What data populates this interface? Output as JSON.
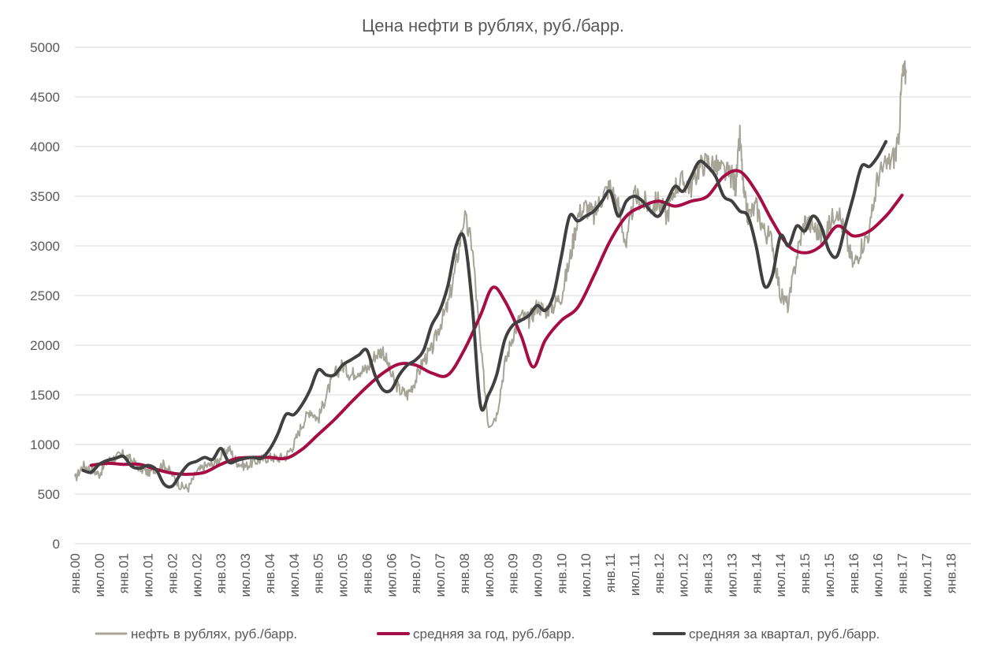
{
  "chart_data": {
    "type": "line",
    "title": "Цена нефти в рублях, руб./барр.",
    "xlabel": "",
    "ylabel": "",
    "ylim": [
      0,
      5000
    ],
    "yticks": [
      "0",
      "500",
      "1000",
      "1500",
      "2000",
      "2500",
      "3000",
      "3500",
      "4000",
      "4500",
      "5000"
    ],
    "x_tick_labels": [
      "янв.00",
      "июл.00",
      "янв.01",
      "июл.01",
      "янв.02",
      "июл.02",
      "янв.03",
      "июл.03",
      "янв.04",
      "июл.04",
      "янв.05",
      "июл.05",
      "янв.06",
      "июл.06",
      "янв.07",
      "июл.07",
      "янв.08",
      "июл.08",
      "янв.09",
      "июл.09",
      "янв.10",
      "июл.10",
      "янв.11",
      "июл.11",
      "янв.12",
      "июл.12",
      "янв.13",
      "июл.13",
      "янв.14",
      "июл.14",
      "янв.15",
      "июл.15",
      "янв.16",
      "июл.16",
      "янв.17",
      "июл.17",
      "янв.18"
    ],
    "x_unit": "months since янв.00 (0 = янв.00)",
    "x_range": [
      0,
      221
    ],
    "grid": true,
    "legend_position": "bottom",
    "series": [
      {
        "name": "нефть в рублях, руб./барр.",
        "color": "#a5a497",
        "width": 2,
        "noisy": true,
        "points": [
          [
            0,
            650
          ],
          [
            2,
            790
          ],
          [
            4,
            750
          ],
          [
            6,
            700
          ],
          [
            8,
            830
          ],
          [
            10,
            870
          ],
          [
            12,
            900
          ],
          [
            14,
            840
          ],
          [
            16,
            760
          ],
          [
            18,
            720
          ],
          [
            20,
            760
          ],
          [
            22,
            800
          ],
          [
            24,
            700
          ],
          [
            26,
            580
          ],
          [
            28,
            560
          ],
          [
            30,
            720
          ],
          [
            32,
            780
          ],
          [
            34,
            800
          ],
          [
            36,
            870
          ],
          [
            38,
            960
          ],
          [
            40,
            820
          ],
          [
            42,
            780
          ],
          [
            44,
            820
          ],
          [
            46,
            850
          ],
          [
            48,
            870
          ],
          [
            50,
            860
          ],
          [
            52,
            880
          ],
          [
            54,
            1000
          ],
          [
            56,
            1200
          ],
          [
            58,
            1350
          ],
          [
            60,
            1250
          ],
          [
            62,
            1500
          ],
          [
            64,
            1700
          ],
          [
            66,
            1800
          ],
          [
            68,
            1700
          ],
          [
            70,
            1750
          ],
          [
            72,
            1750
          ],
          [
            74,
            1900
          ],
          [
            76,
            1950
          ],
          [
            78,
            1700
          ],
          [
            80,
            1550
          ],
          [
            82,
            1500
          ],
          [
            84,
            1650
          ],
          [
            86,
            1850
          ],
          [
            88,
            1950
          ],
          [
            90,
            2200
          ],
          [
            92,
            2400
          ],
          [
            94,
            2800
          ],
          [
            96,
            3300
          ],
          [
            98,
            3000
          ],
          [
            100,
            2000
          ],
          [
            102,
            1200
          ],
          [
            104,
            1300
          ],
          [
            106,
            1800
          ],
          [
            108,
            2100
          ],
          [
            110,
            2300
          ],
          [
            112,
            2250
          ],
          [
            114,
            2400
          ],
          [
            116,
            2350
          ],
          [
            118,
            2400
          ],
          [
            120,
            2500
          ],
          [
            122,
            2850
          ],
          [
            124,
            3300
          ],
          [
            126,
            3400
          ],
          [
            128,
            3300
          ],
          [
            130,
            3500
          ],
          [
            132,
            3600
          ],
          [
            134,
            3400
          ],
          [
            136,
            3000
          ],
          [
            138,
            3500
          ],
          [
            140,
            3450
          ],
          [
            142,
            3400
          ],
          [
            144,
            3450
          ],
          [
            146,
            3300
          ],
          [
            148,
            3600
          ],
          [
            150,
            3650
          ],
          [
            152,
            3600
          ],
          [
            154,
            3800
          ],
          [
            156,
            3850
          ],
          [
            158,
            3800
          ],
          [
            160,
            3750
          ],
          [
            162,
            3700
          ],
          [
            163,
            3600
          ],
          [
            164,
            4100
          ],
          [
            165,
            3500
          ],
          [
            166,
            3300
          ],
          [
            168,
            3400
          ],
          [
            170,
            3150
          ],
          [
            172,
            3050
          ],
          [
            174,
            2500
          ],
          [
            176,
            2400
          ],
          [
            178,
            2900
          ],
          [
            180,
            3250
          ],
          [
            182,
            3200
          ],
          [
            184,
            3100
          ],
          [
            186,
            3200
          ],
          [
            188,
            3400
          ],
          [
            190,
            3100
          ],
          [
            192,
            2800
          ],
          [
            194,
            3000
          ],
          [
            196,
            3150
          ],
          [
            198,
            3700
          ],
          [
            200,
            3800
          ],
          [
            202,
            3900
          ],
          [
            203,
            4000
          ],
          [
            204,
            4700
          ],
          [
            205,
            4750
          ]
        ]
      },
      {
        "name": "средняя за год, руб./барр.",
        "color": "#a50d44",
        "width": 4,
        "noisy": false,
        "points": [
          [
            4,
            790
          ],
          [
            8,
            810
          ],
          [
            12,
            800
          ],
          [
            16,
            800
          ],
          [
            20,
            750
          ],
          [
            24,
            710
          ],
          [
            28,
            700
          ],
          [
            32,
            720
          ],
          [
            36,
            800
          ],
          [
            40,
            860
          ],
          [
            44,
            870
          ],
          [
            48,
            870
          ],
          [
            52,
            860
          ],
          [
            56,
            950
          ],
          [
            60,
            1100
          ],
          [
            64,
            1250
          ],
          [
            68,
            1420
          ],
          [
            72,
            1580
          ],
          [
            76,
            1720
          ],
          [
            80,
            1810
          ],
          [
            84,
            1800
          ],
          [
            88,
            1720
          ],
          [
            92,
            1700
          ],
          [
            96,
            1950
          ],
          [
            100,
            2300
          ],
          [
            103,
            2580
          ],
          [
            106,
            2450
          ],
          [
            110,
            2100
          ],
          [
            113,
            1780
          ],
          [
            116,
            2050
          ],
          [
            120,
            2250
          ],
          [
            124,
            2380
          ],
          [
            128,
            2700
          ],
          [
            132,
            3050
          ],
          [
            136,
            3300
          ],
          [
            140,
            3400
          ],
          [
            144,
            3450
          ],
          [
            148,
            3400
          ],
          [
            152,
            3450
          ],
          [
            156,
            3500
          ],
          [
            160,
            3700
          ],
          [
            164,
            3750
          ],
          [
            168,
            3550
          ],
          [
            172,
            3250
          ],
          [
            176,
            3000
          ],
          [
            180,
            2930
          ],
          [
            184,
            3000
          ],
          [
            188,
            3200
          ],
          [
            192,
            3100
          ],
          [
            196,
            3150
          ],
          [
            200,
            3300
          ],
          [
            202,
            3400
          ],
          [
            204,
            3510
          ]
        ]
      },
      {
        "name": "средняя за квартал, руб./барр.",
        "color": "#404040",
        "width": 4,
        "noisy": false,
        "points": [
          [
            2,
            740
          ],
          [
            4,
            720
          ],
          [
            6,
            800
          ],
          [
            8,
            840
          ],
          [
            10,
            860
          ],
          [
            12,
            880
          ],
          [
            14,
            780
          ],
          [
            16,
            760
          ],
          [
            18,
            790
          ],
          [
            20,
            750
          ],
          [
            22,
            600
          ],
          [
            24,
            580
          ],
          [
            26,
            700
          ],
          [
            28,
            800
          ],
          [
            30,
            830
          ],
          [
            32,
            870
          ],
          [
            34,
            850
          ],
          [
            36,
            960
          ],
          [
            38,
            820
          ],
          [
            40,
            840
          ],
          [
            42,
            860
          ],
          [
            44,
            870
          ],
          [
            46,
            860
          ],
          [
            48,
            950
          ],
          [
            50,
            1100
          ],
          [
            52,
            1300
          ],
          [
            54,
            1300
          ],
          [
            56,
            1400
          ],
          [
            58,
            1550
          ],
          [
            60,
            1750
          ],
          [
            62,
            1700
          ],
          [
            64,
            1700
          ],
          [
            66,
            1800
          ],
          [
            68,
            1850
          ],
          [
            70,
            1900
          ],
          [
            72,
            1950
          ],
          [
            74,
            1700
          ],
          [
            76,
            1550
          ],
          [
            78,
            1550
          ],
          [
            80,
            1700
          ],
          [
            82,
            1800
          ],
          [
            84,
            1850
          ],
          [
            86,
            1950
          ],
          [
            88,
            2200
          ],
          [
            90,
            2350
          ],
          [
            92,
            2600
          ],
          [
            94,
            3000
          ],
          [
            96,
            3080
          ],
          [
            98,
            2400
          ],
          [
            100,
            1400
          ],
          [
            102,
            1500
          ],
          [
            104,
            1700
          ],
          [
            106,
            2050
          ],
          [
            108,
            2200
          ],
          [
            110,
            2250
          ],
          [
            112,
            2300
          ],
          [
            114,
            2400
          ],
          [
            116,
            2350
          ],
          [
            118,
            2500
          ],
          [
            120,
            2900
          ],
          [
            122,
            3300
          ],
          [
            124,
            3250
          ],
          [
            126,
            3300
          ],
          [
            128,
            3350
          ],
          [
            130,
            3450
          ],
          [
            132,
            3550
          ],
          [
            134,
            3300
          ],
          [
            136,
            3450
          ],
          [
            138,
            3500
          ],
          [
            140,
            3450
          ],
          [
            142,
            3350
          ],
          [
            144,
            3300
          ],
          [
            146,
            3450
          ],
          [
            148,
            3600
          ],
          [
            150,
            3550
          ],
          [
            152,
            3700
          ],
          [
            154,
            3850
          ],
          [
            156,
            3800
          ],
          [
            158,
            3700
          ],
          [
            160,
            3500
          ],
          [
            162,
            3450
          ],
          [
            164,
            3350
          ],
          [
            166,
            3300
          ],
          [
            168,
            3000
          ],
          [
            170,
            2600
          ],
          [
            172,
            2700
          ],
          [
            174,
            3100
          ],
          [
            176,
            3000
          ],
          [
            178,
            3200
          ],
          [
            180,
            3150
          ],
          [
            182,
            3300
          ],
          [
            184,
            3200
          ],
          [
            186,
            2950
          ],
          [
            188,
            2900
          ],
          [
            190,
            3200
          ],
          [
            192,
            3500
          ],
          [
            194,
            3800
          ],
          [
            196,
            3800
          ],
          [
            198,
            3900
          ],
          [
            200,
            4050
          ]
        ]
      }
    ]
  }
}
